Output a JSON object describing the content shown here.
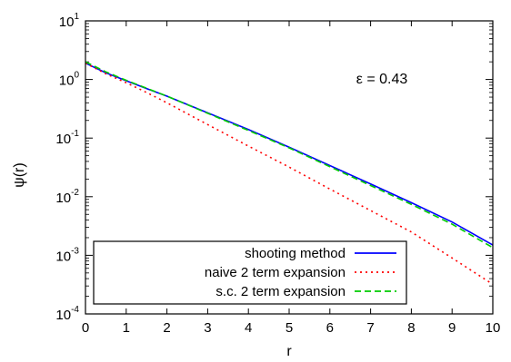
{
  "chart_data": {
    "type": "line",
    "xlabel": "r",
    "ylabel": "ψ(r)",
    "xlim": [
      0,
      10
    ],
    "ylim": [
      0.0001,
      10
    ],
    "yscale": "log",
    "x_ticks": [
      0,
      1,
      2,
      3,
      4,
      5,
      6,
      7,
      8,
      9,
      10
    ],
    "y_ticks": [
      {
        "value": 0.0001,
        "base": "10",
        "exp": "-4"
      },
      {
        "value": 0.001,
        "base": "10",
        "exp": "-3"
      },
      {
        "value": 0.01,
        "base": "10",
        "exp": "-2"
      },
      {
        "value": 0.1,
        "base": "10",
        "exp": "-1"
      },
      {
        "value": 1,
        "base": "10",
        "exp": "0"
      },
      {
        "value": 10,
        "base": "10",
        "exp": "1"
      }
    ],
    "annotation": "ε = 0.43",
    "legend_position": "bottom-left",
    "x": [
      0,
      0.5,
      1,
      1.5,
      2,
      3,
      4,
      5,
      6,
      7,
      8,
      9,
      10
    ],
    "series": [
      {
        "name": "shooting method",
        "color": "#0000ff",
        "dash": "solid",
        "values": [
          1.9,
          1.3,
          0.95,
          0.7,
          0.52,
          0.27,
          0.14,
          0.07,
          0.034,
          0.0165,
          0.0079,
          0.0037,
          0.0015
        ]
      },
      {
        "name": "naive 2 term expansion",
        "color": "#ff0000",
        "dash": "dotted",
        "values": [
          1.9,
          1.25,
          0.88,
          0.6,
          0.4,
          0.17,
          0.073,
          0.032,
          0.0135,
          0.0058,
          0.0025,
          0.0009,
          0.00032
        ]
      },
      {
        "name": "s.c. 2 term expansion",
        "color": "#00cc00",
        "dash": "dashed",
        "values": [
          2.0,
          1.35,
          0.97,
          0.71,
          0.52,
          0.265,
          0.135,
          0.068,
          0.0325,
          0.0155,
          0.0074,
          0.0034,
          0.00135
        ]
      }
    ]
  }
}
